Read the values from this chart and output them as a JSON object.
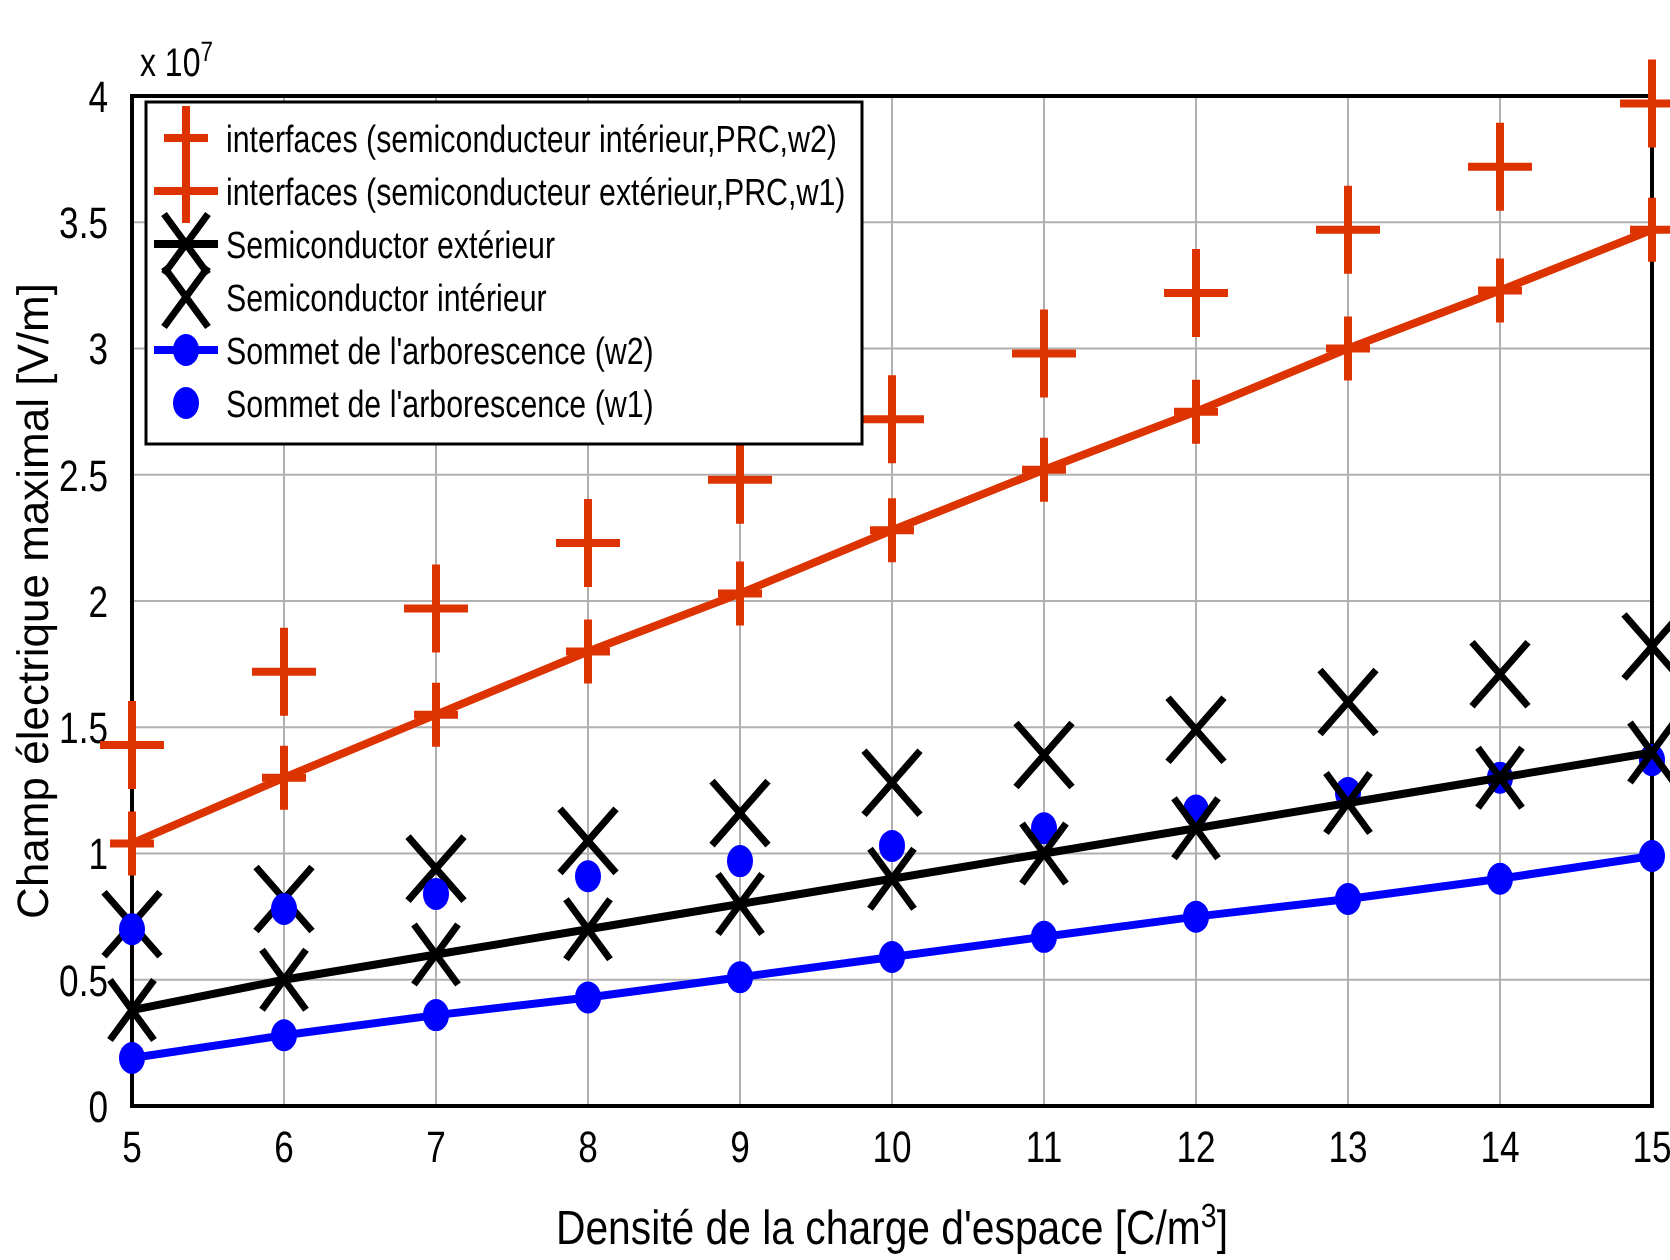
{
  "chart_data": {
    "type": "line",
    "xlabel": "Densité de la charge d'espace [C/m$^{3}$]",
    "ylabel": "Champ électrique maximal [V/m]",
    "annotations": [
      "x 10$^{7}$"
    ],
    "x": [
      5,
      6,
      7,
      8,
      9,
      10,
      11,
      12,
      13,
      14,
      15
    ],
    "xlim": [
      5,
      15
    ],
    "xticks": [
      5,
      6,
      7,
      8,
      9,
      10,
      11,
      12,
      13,
      14,
      15
    ],
    "ylim": [
      0,
      4
    ],
    "yticks": [
      0,
      0.5,
      1,
      1.5,
      2,
      2.5,
      3,
      3.5,
      4
    ],
    "grid": true,
    "legend": "top left",
    "series": [
      {
        "name": "interfaces (semiconducteur intérieur,PRC,w2)",
        "type": "scatter",
        "marker": "cross",
        "color": "#dd3300",
        "values": [
          1.43,
          1.72,
          1.97,
          2.23,
          2.48,
          2.72,
          2.98,
          3.22,
          3.47,
          3.72,
          3.97
        ]
      },
      {
        "name": "interfaces (semiconducteur extérieur,PRC,w1)",
        "marker": "cross",
        "color": "#dd3300",
        "values": [
          1.04,
          1.3,
          1.55,
          1.8,
          2.03,
          2.28,
          2.52,
          2.75,
          3.0,
          3.23,
          3.47
        ]
      },
      {
        "name": "Semiconductor extérieur",
        "marker": "x",
        "color": "#000000",
        "values": [
          0.38,
          0.5,
          0.6,
          0.7,
          0.8,
          0.9,
          1.0,
          1.1,
          1.2,
          1.3,
          1.4
        ]
      },
      {
        "name": "Semiconductor intérieur",
        "type": "scatter",
        "marker": "x",
        "color": "#000000",
        "values": [
          0.72,
          0.82,
          0.94,
          1.05,
          1.16,
          1.28,
          1.39,
          1.49,
          1.6,
          1.71,
          1.82
        ]
      },
      {
        "name": "Sommet de l'arborescence (w2)",
        "marker": "circle",
        "color": "#0000ff",
        "values": [
          0.19,
          0.28,
          0.36,
          0.43,
          0.51,
          0.59,
          0.67,
          0.75,
          0.82,
          0.9,
          0.99
        ]
      },
      {
        "name": "Sommet de l'arborescence (w1)",
        "type": "scatter",
        "marker": "circle",
        "color": "#0000ff",
        "values": [
          0.7,
          0.78,
          0.84,
          0.91,
          0.97,
          1.03,
          1.1,
          1.17,
          1.24,
          1.3,
          1.37
        ]
      }
    ]
  }
}
